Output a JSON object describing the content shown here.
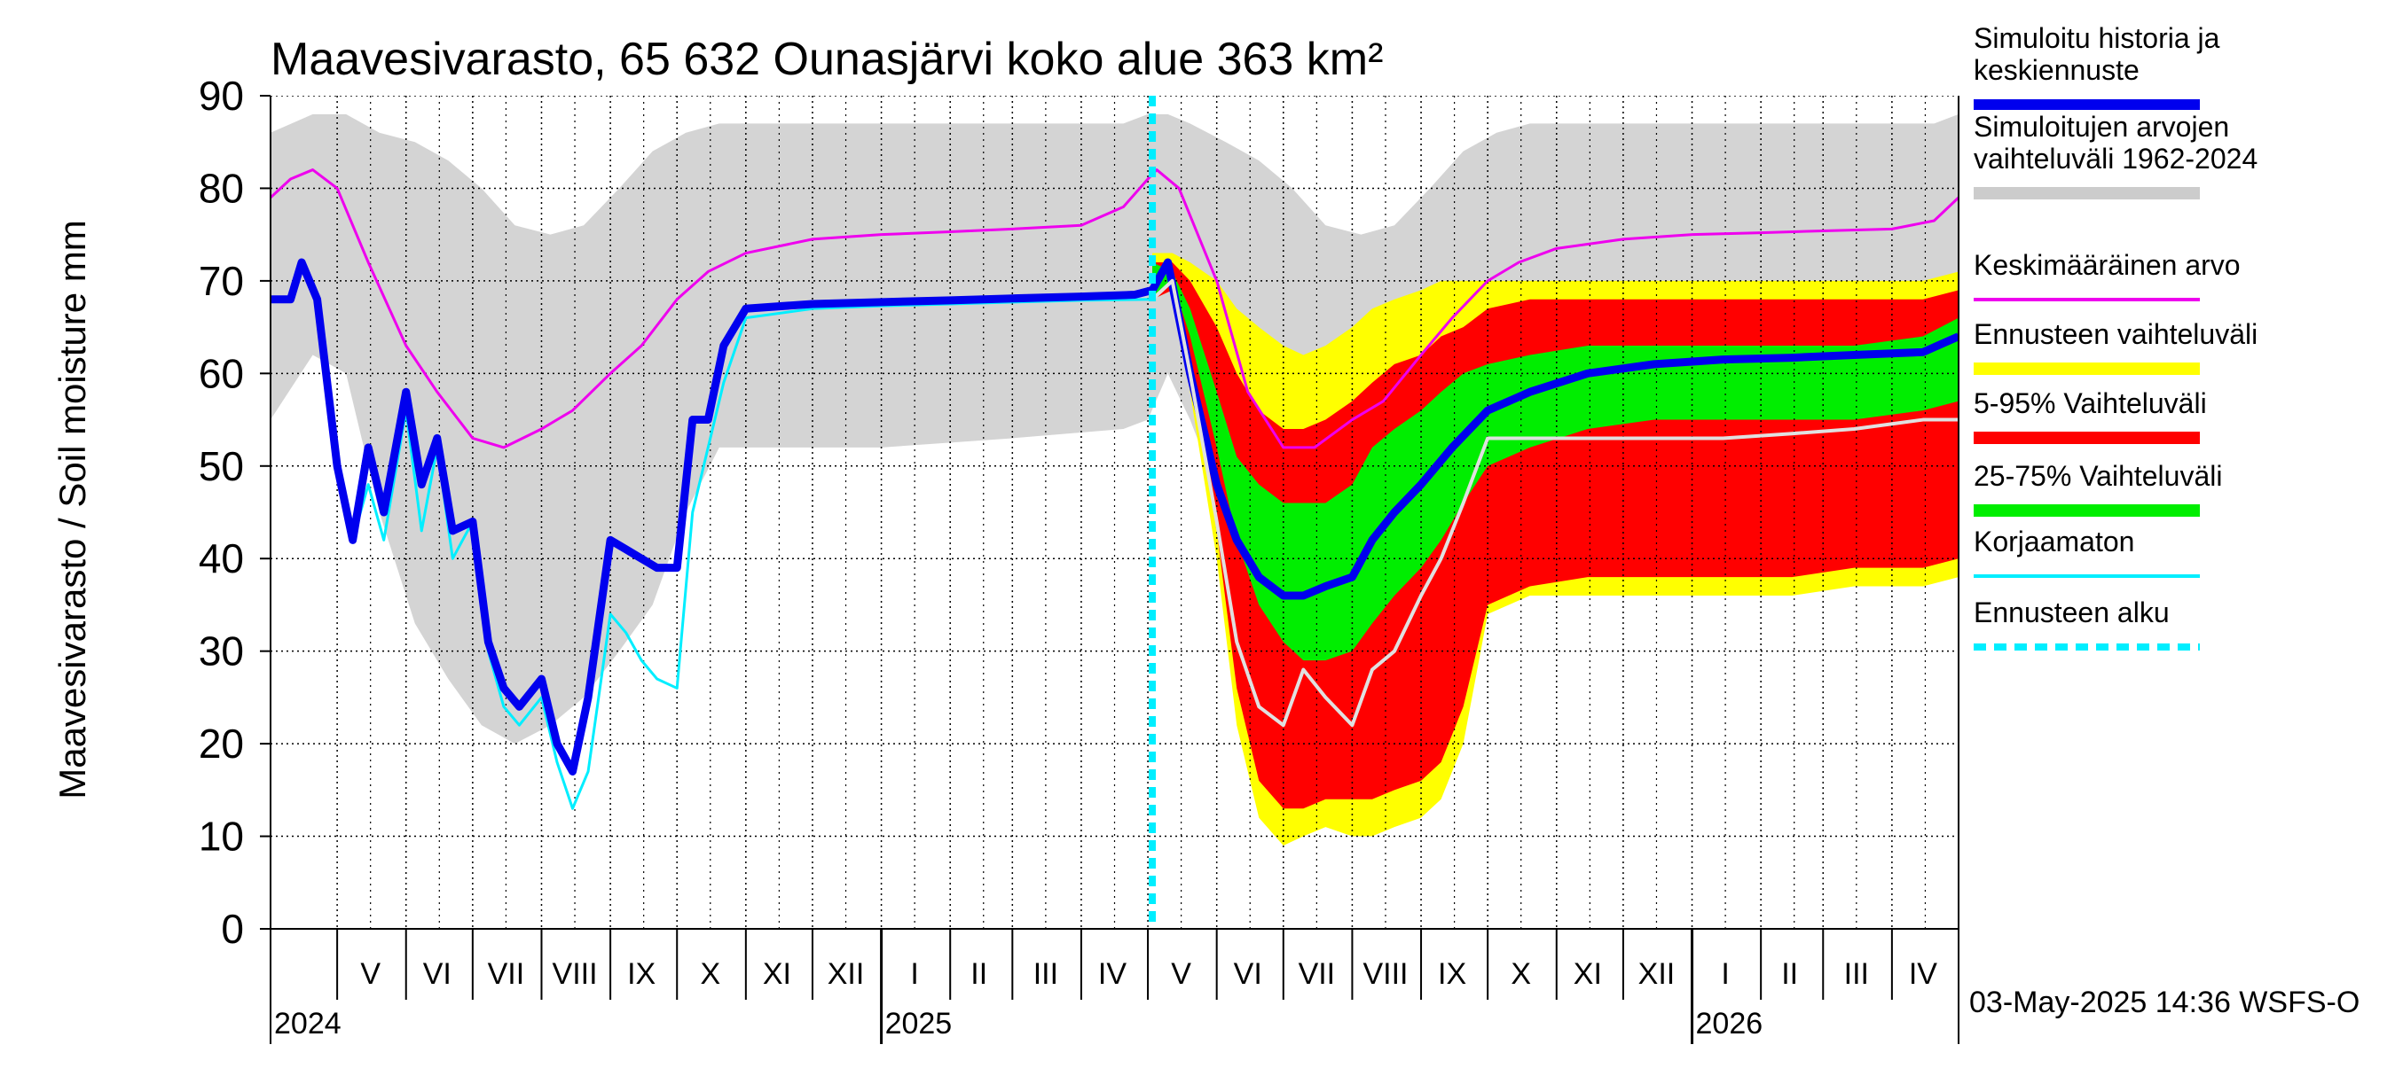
{
  "chart_data": {
    "type": "area",
    "title": "Maavesivarasto, 65 632 Ounasjärvi koko alue 363 km²",
    "ylabel": "Maavesivarasto / Soil moisture   mm",
    "ylim": [
      0,
      90
    ],
    "yticks": [
      0,
      10,
      20,
      30,
      40,
      50,
      60,
      70,
      80,
      90
    ],
    "xlim": [
      "2024-04-01",
      "2026-05-01"
    ],
    "forecast_start": "2025-05-03",
    "grid": true,
    "legend_position": "right",
    "footer": "03-May-2025 14:36 WSFS-O",
    "year_labels": [
      {
        "label": "2024",
        "date": "2024-04-01"
      },
      {
        "label": "2025",
        "date": "2025-01-01"
      },
      {
        "label": "2026",
        "date": "2026-01-01"
      }
    ],
    "month_labels": [
      {
        "label": "V",
        "mid": "2024-05-16"
      },
      {
        "label": "VI",
        "mid": "2024-06-15"
      },
      {
        "label": "VII",
        "mid": "2024-07-16"
      },
      {
        "label": "VIII",
        "mid": "2024-08-16"
      },
      {
        "label": "IX",
        "mid": "2024-09-15"
      },
      {
        "label": "X",
        "mid": "2024-10-16"
      },
      {
        "label": "XI",
        "mid": "2024-11-15"
      },
      {
        "label": "XII",
        "mid": "2024-12-16"
      },
      {
        "label": "I",
        "mid": "2025-01-16"
      },
      {
        "label": "II",
        "mid": "2025-02-14"
      },
      {
        "label": "III",
        "mid": "2025-03-16"
      },
      {
        "label": "IV",
        "mid": "2025-04-15"
      },
      {
        "label": "V",
        "mid": "2025-05-16"
      },
      {
        "label": "VI",
        "mid": "2025-06-15"
      },
      {
        "label": "VII",
        "mid": "2025-07-16"
      },
      {
        "label": "VIII",
        "mid": "2025-08-16"
      },
      {
        "label": "IX",
        "mid": "2025-09-15"
      },
      {
        "label": "X",
        "mid": "2025-10-16"
      },
      {
        "label": "XI",
        "mid": "2025-11-15"
      },
      {
        "label": "XII",
        "mid": "2025-12-16"
      },
      {
        "label": "I",
        "mid": "2026-01-16"
      },
      {
        "label": "II",
        "mid": "2026-02-14"
      },
      {
        "label": "III",
        "mid": "2026-03-16"
      },
      {
        "label": "IV",
        "mid": "2026-04-15"
      }
    ],
    "month_starts": [
      "2024-05-01",
      "2024-06-01",
      "2024-07-01",
      "2024-08-01",
      "2024-09-01",
      "2024-10-01",
      "2024-11-01",
      "2024-12-01",
      "2025-01-01",
      "2025-02-01",
      "2025-03-01",
      "2025-04-01",
      "2025-05-01",
      "2025-06-01",
      "2025-07-01",
      "2025-08-01",
      "2025-09-01",
      "2025-10-01",
      "2025-11-01",
      "2025-12-01",
      "2026-01-01",
      "2026-02-01",
      "2026-03-01",
      "2026-04-01"
    ],
    "legend": [
      {
        "label": "Simuloitu historia ja\nkeskiennuste",
        "color": "#0000ee",
        "style": "thick"
      },
      {
        "label": "Simuloitujen arvojen\nvaihteluväli 1962-2024",
        "color": "#cccccc",
        "style": "band"
      },
      {
        "label": "Keskimääräinen arvo",
        "color": "#ee00ee",
        "style": "line"
      },
      {
        "label": "Ennusteen vaihteluväli",
        "color": "#ffff00",
        "style": "band"
      },
      {
        "label": "5-95% Vaihteluväli",
        "color": "#ff0000",
        "style": "band"
      },
      {
        "label": "25-75% Vaihteluväli",
        "color": "#00ee00",
        "style": "band"
      },
      {
        "label": "Korjaamaton",
        "color": "#00eeff",
        "style": "line"
      },
      {
        "label": "Ennusteen alku",
        "color": "#00eeff",
        "style": "dashed"
      }
    ],
    "series": [
      {
        "name": "Simuloitujen arvojen vaihteluväli 1962-2024",
        "kind": "band",
        "color": "#d4d4d4",
        "x": [
          "2024-04-01",
          "2024-04-20",
          "2024-05-05",
          "2024-05-20",
          "2024-06-05",
          "2024-06-20",
          "2024-07-05",
          "2024-07-20",
          "2024-08-05",
          "2024-08-20",
          "2024-09-05",
          "2024-09-20",
          "2024-10-05",
          "2024-10-20",
          "2024-11-05",
          "2024-12-01",
          "2025-01-01",
          "2025-03-01",
          "2025-04-20",
          "2025-05-01",
          "2025-05-10",
          "2025-05-20",
          "2025-06-05",
          "2025-06-20",
          "2025-07-05",
          "2025-07-20",
          "2025-08-05",
          "2025-08-20",
          "2025-09-05",
          "2025-09-20",
          "2025-10-05",
          "2025-10-20",
          "2025-11-05",
          "2025-12-01",
          "2026-01-01",
          "2026-03-01",
          "2026-04-20",
          "2026-05-01"
        ],
        "low": [
          55,
          62,
          60,
          45,
          33,
          27,
          22,
          20,
          22,
          25,
          30,
          35,
          45,
          52,
          52,
          52,
          52,
          53,
          54,
          55,
          60,
          55,
          45,
          35,
          28,
          26,
          28,
          32,
          40,
          50,
          52,
          52,
          52,
          52,
          52,
          53,
          54,
          55
        ],
        "high": [
          86,
          88,
          88,
          86,
          85,
          83,
          80,
          76,
          75,
          76,
          80,
          84,
          86,
          87,
          87,
          87,
          87,
          87,
          87,
          88,
          88,
          87,
          85,
          83,
          80,
          76,
          75,
          76,
          80,
          84,
          86,
          87,
          87,
          87,
          87,
          87,
          87,
          88
        ]
      },
      {
        "name": "Ennusteen vaihteluväli",
        "kind": "band",
        "color": "#ffff00",
        "x": [
          "2025-05-03",
          "2025-05-12",
          "2025-05-20",
          "2025-06-01",
          "2025-06-10",
          "2025-06-20",
          "2025-07-01",
          "2025-07-10",
          "2025-07-20",
          "2025-08-01",
          "2025-08-10",
          "2025-08-20",
          "2025-09-01",
          "2025-09-10",
          "2025-09-20",
          "2025-10-01",
          "2025-10-20",
          "2025-11-15",
          "2025-12-15",
          "2026-01-15",
          "2026-02-15",
          "2026-03-15",
          "2026-04-15",
          "2026-05-01"
        ],
        "low": [
          68,
          69,
          58,
          40,
          22,
          12,
          9,
          10,
          11,
          10,
          10,
          11,
          12,
          14,
          20,
          34,
          36,
          36,
          36,
          36,
          36,
          37,
          37,
          38
        ],
        "high": [
          73,
          73,
          72,
          70,
          67,
          65,
          63,
          62,
          63,
          65,
          67,
          68,
          69,
          70,
          70,
          70,
          70,
          70,
          70,
          70,
          70,
          70,
          70,
          71
        ]
      },
      {
        "name": "5-95% Vaihteluväli",
        "kind": "band",
        "color": "#ff0000",
        "x": [
          "2025-05-03",
          "2025-05-12",
          "2025-05-20",
          "2025-06-01",
          "2025-06-10",
          "2025-06-20",
          "2025-07-01",
          "2025-07-10",
          "2025-07-20",
          "2025-08-01",
          "2025-08-10",
          "2025-08-20",
          "2025-09-01",
          "2025-09-10",
          "2025-09-20",
          "2025-10-01",
          "2025-10-20",
          "2025-11-15",
          "2025-12-15",
          "2026-01-15",
          "2026-02-15",
          "2026-03-15",
          "2026-04-15",
          "2026-05-01"
        ],
        "low": [
          68,
          69,
          60,
          43,
          26,
          16,
          13,
          13,
          14,
          14,
          14,
          15,
          16,
          18,
          24,
          35,
          37,
          38,
          38,
          38,
          38,
          39,
          39,
          40
        ],
        "high": [
          72,
          72,
          70,
          65,
          60,
          56,
          54,
          54,
          55,
          57,
          59,
          61,
          62,
          64,
          65,
          67,
          68,
          68,
          68,
          68,
          68,
          68,
          68,
          69
        ]
      },
      {
        "name": "25-75% Vaihteluväli",
        "kind": "band",
        "color": "#00ee00",
        "x": [
          "2025-05-03",
          "2025-05-12",
          "2025-05-20",
          "2025-06-01",
          "2025-06-10",
          "2025-06-20",
          "2025-07-01",
          "2025-07-10",
          "2025-07-20",
          "2025-08-01",
          "2025-08-10",
          "2025-08-20",
          "2025-09-01",
          "2025-09-10",
          "2025-09-20",
          "2025-10-01",
          "2025-10-20",
          "2025-11-15",
          "2025-12-15",
          "2026-01-15",
          "2026-02-15",
          "2026-03-15",
          "2026-04-15",
          "2026-05-01"
        ],
        "low": [
          68,
          70,
          64,
          52,
          42,
          35,
          31,
          29,
          29,
          30,
          33,
          36,
          39,
          42,
          46,
          50,
          52,
          54,
          55,
          55,
          55,
          55,
          56,
          57
        ],
        "high": [
          72,
          71,
          67,
          58,
          51,
          48,
          46,
          46,
          46,
          48,
          52,
          54,
          56,
          58,
          60,
          61,
          62,
          63,
          63,
          63,
          63,
          63,
          64,
          66
        ]
      },
      {
        "name": "Keskimääräinen arvo",
        "kind": "line",
        "color": "#ee00ee",
        "width": 3,
        "x": [
          "2024-04-01",
          "2024-04-10",
          "2024-04-20",
          "2024-05-01",
          "2024-05-15",
          "2024-06-01",
          "2024-06-15",
          "2024-07-01",
          "2024-07-15",
          "2024-08-01",
          "2024-08-15",
          "2024-09-01",
          "2024-09-15",
          "2024-10-01",
          "2024-10-15",
          "2024-11-01",
          "2024-12-01",
          "2025-01-01",
          "2025-02-01",
          "2025-03-01",
          "2025-04-01",
          "2025-04-20",
          "2025-05-01",
          "2025-05-05",
          "2025-05-15",
          "2025-06-01",
          "2025-06-15",
          "2025-07-01",
          "2025-07-15",
          "2025-08-01",
          "2025-08-15",
          "2025-09-01",
          "2025-09-15",
          "2025-10-01",
          "2025-10-15",
          "2025-11-01",
          "2025-12-01",
          "2026-01-01",
          "2026-02-01",
          "2026-03-01",
          "2026-04-01",
          "2026-04-20",
          "2026-05-01"
        ],
        "y": [
          79,
          81,
          82,
          80,
          72,
          63,
          58,
          53,
          52,
          54,
          56,
          60,
          63,
          68,
          71,
          73,
          74.5,
          75,
          75.3,
          75.6,
          76,
          78,
          81,
          82,
          80,
          70,
          58,
          52,
          52,
          55,
          57,
          62,
          66,
          70,
          72,
          73.5,
          74.5,
          75,
          75.2,
          75.4,
          75.6,
          76.5,
          79
        ]
      },
      {
        "name": "Korjaamaton",
        "kind": "line",
        "color": "#00eeff",
        "width": 3,
        "x": [
          "2024-04-01",
          "2024-04-10",
          "2024-04-15",
          "2024-04-22",
          "2024-05-01",
          "2024-05-08",
          "2024-05-15",
          "2024-05-22",
          "2024-06-01",
          "2024-06-08",
          "2024-06-15",
          "2024-06-22",
          "2024-07-01",
          "2024-07-08",
          "2024-07-15",
          "2024-07-22",
          "2024-08-01",
          "2024-08-08",
          "2024-08-15",
          "2024-08-22",
          "2024-09-01",
          "2024-09-08",
          "2024-09-15",
          "2024-09-22",
          "2024-10-01",
          "2024-10-08",
          "2024-10-15",
          "2024-10-22",
          "2024-11-01",
          "2024-12-01",
          "2025-01-01",
          "2025-02-01",
          "2025-03-01",
          "2025-04-01",
          "2025-05-03"
        ],
        "y": [
          68,
          68,
          72,
          68,
          50,
          42,
          48,
          42,
          56,
          43,
          52,
          40,
          44,
          30,
          24,
          22,
          25,
          18,
          13,
          17,
          34,
          32,
          29,
          27,
          26,
          45,
          52,
          59,
          66,
          67,
          67.3,
          67.5,
          67.7,
          67.9,
          68
        ]
      },
      {
        "name": "Simuloitu historia ja keskiennuste",
        "kind": "line",
        "color": "#0000ee",
        "width": 9,
        "x": [
          "2024-04-01",
          "2024-04-10",
          "2024-04-15",
          "2024-04-22",
          "2024-05-01",
          "2024-05-08",
          "2024-05-15",
          "2024-05-22",
          "2024-06-01",
          "2024-06-08",
          "2024-06-15",
          "2024-06-22",
          "2024-07-01",
          "2024-07-08",
          "2024-07-15",
          "2024-07-22",
          "2024-08-01",
          "2024-08-08",
          "2024-08-15",
          "2024-08-22",
          "2024-09-01",
          "2024-09-08",
          "2024-09-15",
          "2024-09-22",
          "2024-10-01",
          "2024-10-08",
          "2024-10-15",
          "2024-10-22",
          "2024-11-01",
          "2024-12-01",
          "2025-01-01",
          "2025-02-01",
          "2025-03-01",
          "2025-04-01",
          "2025-04-25",
          "2025-05-03",
          "2025-05-10",
          "2025-05-20",
          "2025-06-01",
          "2025-06-10",
          "2025-06-20",
          "2025-07-01",
          "2025-07-10",
          "2025-07-20",
          "2025-08-01",
          "2025-08-10",
          "2025-08-20",
          "2025-09-01",
          "2025-09-15",
          "2025-10-01",
          "2025-10-20",
          "2025-11-15",
          "2025-12-15",
          "2026-01-15",
          "2026-02-15",
          "2026-03-15",
          "2026-04-15",
          "2026-05-01"
        ],
        "y": [
          68,
          68,
          72,
          68,
          50,
          42,
          52,
          45,
          58,
          48,
          53,
          43,
          44,
          31,
          26,
          24,
          27,
          20,
          17,
          25,
          42,
          41,
          40,
          39,
          39,
          55,
          55,
          63,
          67,
          67.5,
          67.7,
          67.9,
          68.1,
          68.3,
          68.5,
          69,
          72,
          60,
          48,
          42,
          38,
          36,
          36,
          37,
          38,
          42,
          45,
          48,
          52,
          56,
          58,
          60,
          61,
          61.5,
          61.7,
          62,
          62.3,
          64
        ]
      },
      {
        "name": "Korjaamaton (ennuste)",
        "kind": "line",
        "color": "#e0e0e0",
        "width": 4,
        "x": [
          "2025-05-03",
          "2025-05-12",
          "2025-05-20",
          "2025-06-01",
          "2025-06-10",
          "2025-06-20",
          "2025-07-01",
          "2025-07-10",
          "2025-07-20",
          "2025-08-01",
          "2025-08-10",
          "2025-08-20",
          "2025-09-01",
          "2025-09-10",
          "2025-09-20",
          "2025-10-01",
          "2025-10-20",
          "2025-11-15",
          "2025-12-15",
          "2026-01-15",
          "2026-02-15",
          "2026-03-15",
          "2026-04-15",
          "2026-05-01"
        ],
        "y": [
          68,
          70,
          60,
          44,
          31,
          24,
          22,
          28,
          25,
          22,
          28,
          30,
          36,
          40,
          46,
          53,
          53,
          53,
          53,
          53,
          53.5,
          54,
          55,
          55
        ]
      }
    ]
  }
}
